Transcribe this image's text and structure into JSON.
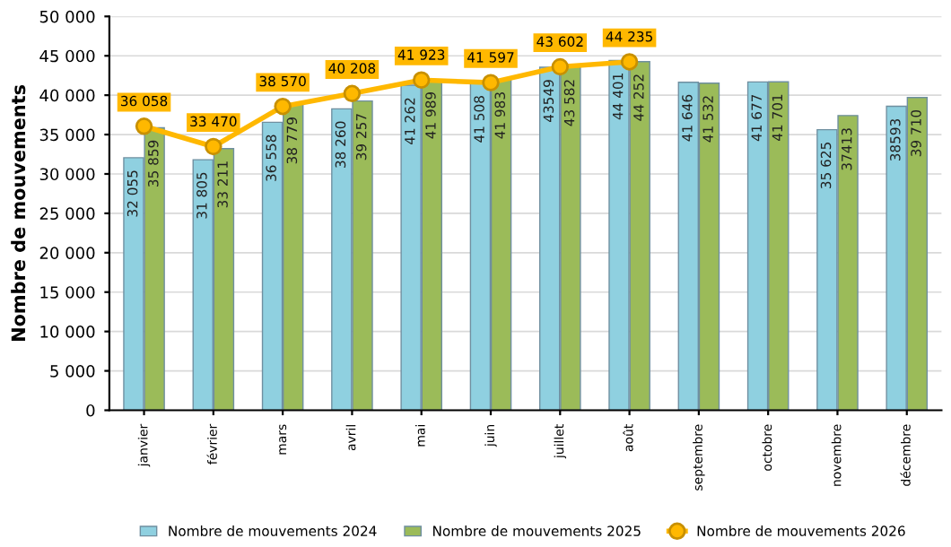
{
  "chart_data": {
    "type": "bar",
    "ylabel": "Nombre de mouvements",
    "categories": [
      "janvier",
      "février",
      "mars",
      "avril",
      "mai",
      "juin",
      "juillet",
      "août",
      "septembre",
      "octobre",
      "novembre",
      "décembre"
    ],
    "series": [
      {
        "name": "Nombre de mouvements 2024",
        "color": "#8fd0e0",
        "values": [
          32055,
          31805,
          36558,
          38260,
          41262,
          41508,
          43549,
          44401,
          41646,
          41677,
          35625,
          38593
        ],
        "value_labels": [
          "32 055",
          "31 805",
          "36 558",
          "38 260",
          "41 262",
          "41 508",
          "43549",
          "44 401",
          "41 646",
          "41 677",
          "35 625",
          "38593"
        ]
      },
      {
        "name": "Nombre de mouvements 2025",
        "color": "#9bbb59",
        "values": [
          35859,
          33211,
          38779,
          39257,
          41989,
          41983,
          43582,
          44252,
          41532,
          41701,
          37413,
          39710
        ],
        "value_labels": [
          "35 859",
          "33 211",
          "38 779",
          "39 257",
          "41 989",
          "41 983",
          "43 582",
          "44 252",
          "41 532",
          "41 701",
          "37413",
          "39 710"
        ]
      },
      {
        "name": "Nombre de mouvements 2026",
        "type": "line",
        "color": "#ffb800",
        "marker": "circle",
        "values": [
          36058,
          33470,
          38570,
          40208,
          41923,
          41597,
          43602,
          44235,
          null,
          null,
          null,
          null
        ],
        "value_labels": [
          "36 058",
          "33 470",
          "38 570",
          "40 208",
          "41 923",
          "41 597",
          "43 602",
          "44 235",
          null,
          null,
          null,
          null
        ]
      }
    ],
    "ylim": [
      0,
      50000
    ],
    "yticks": [
      {
        "value": 0,
        "label": "0"
      },
      {
        "value": 5000,
        "label": "5 000"
      },
      {
        "value": 10000,
        "label": "10 000"
      },
      {
        "value": 15000,
        "label": "15 000"
      },
      {
        "value": 20000,
        "label": "20 000"
      },
      {
        "value": 25000,
        "label": "25 000"
      },
      {
        "value": 30000,
        "label": "30 000"
      },
      {
        "value": 35000,
        "label": "35 000"
      },
      {
        "value": 40000,
        "label": "40 000"
      },
      {
        "value": 45000,
        "label": "45 000"
      },
      {
        "value": 50000,
        "label": "50 000"
      }
    ],
    "grid": "y",
    "legend": "bottom"
  }
}
